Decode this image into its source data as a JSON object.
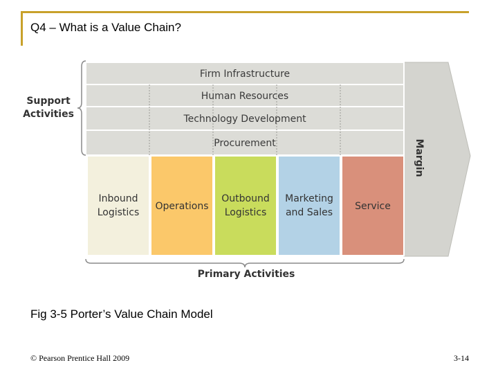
{
  "slide": {
    "title": "Q4 – What is a Value Chain?",
    "caption": "Fig 3-5 Porter’s Value Chain Model",
    "footer_left": "© Pearson Prentice Hall 2009",
    "footer_right": "3-14",
    "accent_color": "#c8a12a"
  },
  "diagram": {
    "support_label": [
      "Support",
      "Activities"
    ],
    "primary_label": "Primary Activities",
    "margin_label": "Margin",
    "support_activities": [
      "Firm Infrastructure",
      "Human Resources",
      "Technology Development",
      "Procurement"
    ],
    "primary_activities": [
      {
        "lines": [
          "Inbound",
          "Logistics"
        ],
        "color": "#f3f0dd"
      },
      {
        "lines": [
          "Operations"
        ],
        "color": "#fbc86a"
      },
      {
        "lines": [
          "Outbound",
          "Logistics"
        ],
        "color": "#c9dc5c"
      },
      {
        "lines": [
          "Marketing",
          "and Sales"
        ],
        "color": "#b3d2e6"
      },
      {
        "lines": [
          "Service"
        ],
        "color": "#d9907b"
      }
    ],
    "support_band_color": "#dcdcd7",
    "margin_color": "#d4d4cf"
  }
}
